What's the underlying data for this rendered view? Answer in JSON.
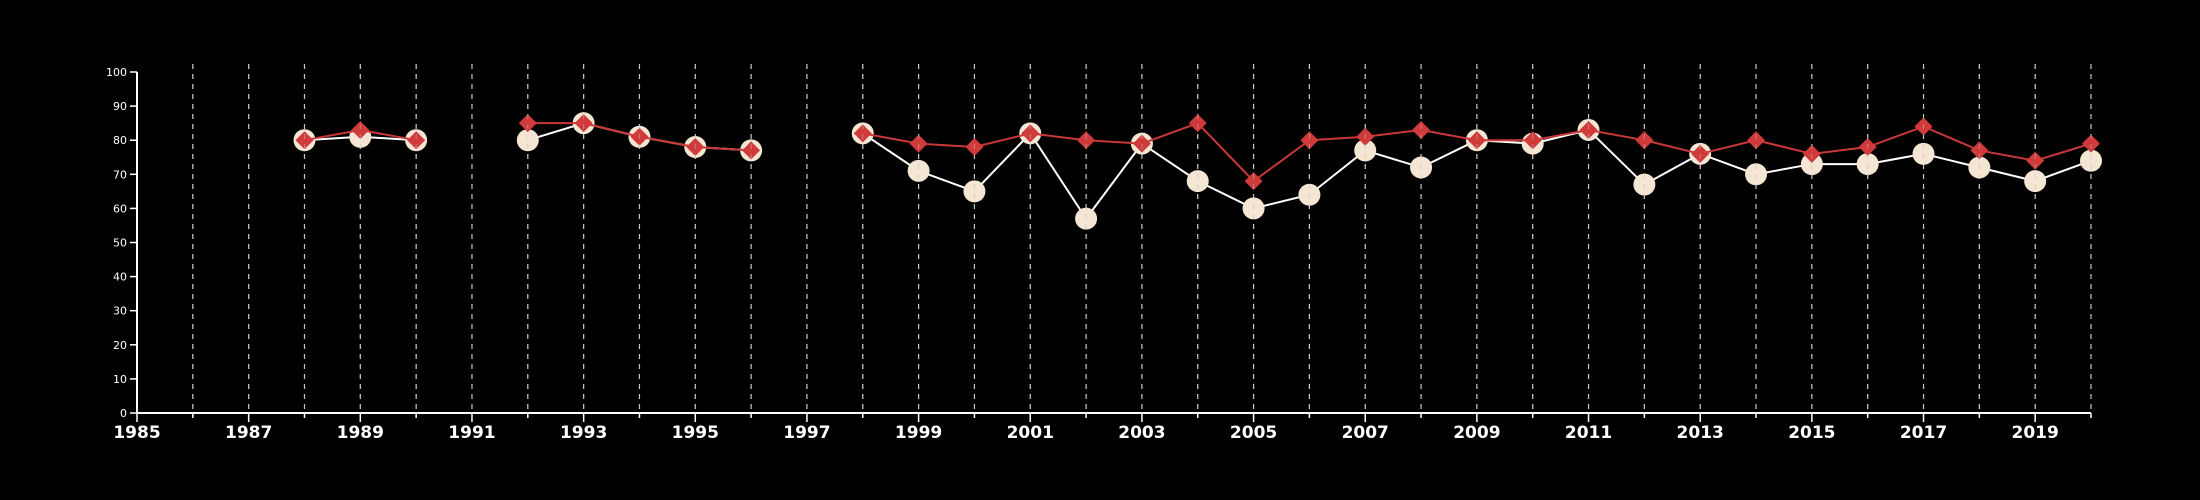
{
  "chart_data": {
    "type": "line",
    "title": "",
    "xlabel": "",
    "ylabel": "",
    "xlim": [
      1985,
      2020
    ],
    "ylim": [
      0,
      100
    ],
    "y_ticks": [
      "0",
      "10",
      "20",
      "30",
      "40",
      "50",
      "60",
      "70",
      "80",
      "90",
      "100"
    ],
    "x_ticks": [
      "1985",
      "1987",
      "1989",
      "1991",
      "1993",
      "1995",
      "1997",
      "1999",
      "2001",
      "2003",
      "2005",
      "2007",
      "2009",
      "2011",
      "2013",
      "2015",
      "2017",
      "2019"
    ],
    "vertical_grid": "dashed at each year",
    "horizontal_grid": false,
    "legend": "none",
    "series": [
      {
        "marker": "circle",
        "color": "#f5e6d3",
        "line_color": "#ffffff",
        "x": [
          1988,
          1989,
          1990,
          1992,
          1993,
          1994,
          1995,
          1996,
          1998,
          1999,
          2000,
          2001,
          2002,
          2003,
          2004,
          2005,
          2006,
          2007,
          2008,
          2009,
          2010,
          2011,
          2012,
          2013,
          2014,
          2015,
          2016,
          2017,
          2018,
          2019,
          2020
        ],
        "y": [
          80,
          81,
          80,
          80,
          85,
          81,
          78,
          77,
          82,
          71,
          65,
          82,
          57,
          79,
          68,
          60,
          64,
          77,
          72,
          80,
          79,
          83,
          67,
          76,
          70,
          73,
          73,
          76,
          72,
          68,
          74
        ]
      },
      {
        "marker": "diamond",
        "color": "#d03a3a",
        "line_color": "#c8383a",
        "x": [
          1988,
          1989,
          1990,
          1992,
          1993,
          1994,
          1995,
          1996,
          1998,
          1999,
          2000,
          2001,
          2002,
          2003,
          2004,
          2005,
          2006,
          2007,
          2008,
          2009,
          2010,
          2011,
          2012,
          2013,
          2014,
          2015,
          2016,
          2017,
          2018,
          2019,
          2020
        ],
        "y": [
          80,
          83,
          80,
          85,
          85,
          81,
          78,
          77,
          82,
          79,
          78,
          82,
          80,
          79,
          85,
          68,
          80,
          81,
          83,
          80,
          80,
          83,
          80,
          76,
          80,
          76,
          78,
          84,
          77,
          74,
          79
        ]
      }
    ]
  }
}
